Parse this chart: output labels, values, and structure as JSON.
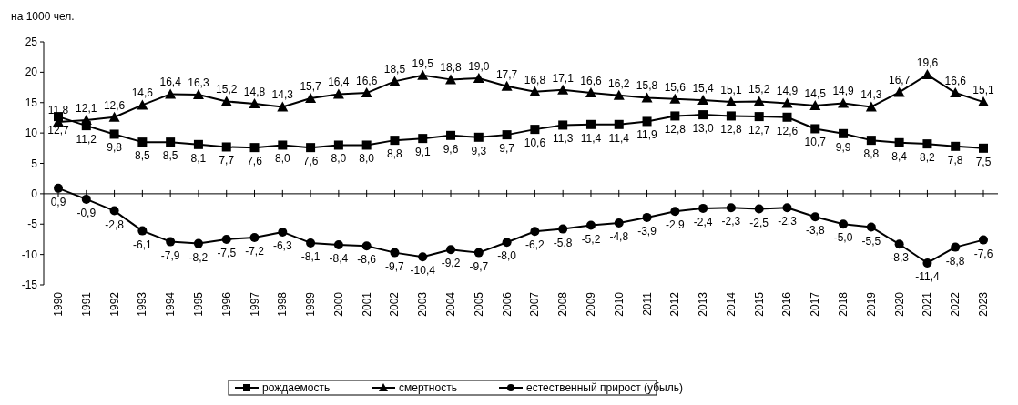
{
  "chart_data": {
    "type": "line",
    "ylabel": "на 1000 чел.",
    "categories": [
      "1990",
      "1991",
      "1992",
      "1993",
      "1994",
      "1995",
      "1996",
      "1997",
      "1998",
      "1999",
      "2000",
      "2001",
      "2002",
      "2003",
      "2004",
      "2005",
      "2006",
      "2007",
      "2008",
      "2009",
      "2010",
      "2011",
      "2012",
      "2013",
      "2014",
      "2015",
      "2016",
      "2017",
      "2018",
      "2019",
      "2020",
      "2021",
      "2022",
      "2023"
    ],
    "ylim": [
      -15,
      25
    ],
    "yticks": [
      -15,
      -10,
      -5,
      0,
      5,
      10,
      15,
      20,
      25
    ],
    "legend": "bottom",
    "series": [
      {
        "name": "рождаемость",
        "color": "#000000",
        "marker": "square",
        "values": [
          12.7,
          11.2,
          9.8,
          8.5,
          8.5,
          8.1,
          7.7,
          7.6,
          8.0,
          7.6,
          8.0,
          8.0,
          8.8,
          9.1,
          9.6,
          9.3,
          9.7,
          10.6,
          11.3,
          11.4,
          11.4,
          11.9,
          12.8,
          13.0,
          12.8,
          12.7,
          12.6,
          10.7,
          9.9,
          8.8,
          8.4,
          8.2,
          7.8,
          7.5
        ],
        "value_labels": [
          "12,7",
          "11,2",
          "9,8",
          "8,5",
          "8,5",
          "8,1",
          "7,7",
          "7,6",
          "8,0",
          "7,6",
          "8,0",
          "8,0",
          "8,8",
          "9,1",
          "9,6",
          "9,3",
          "9,7",
          "10,6",
          "11,3",
          "11,4",
          "11,4",
          "11,9",
          "12,8",
          "13,0",
          "12,8",
          "12,7",
          "12,6",
          "10,7",
          "9,9",
          "8,8",
          "8,4",
          "8,2",
          "7,8",
          "7,5"
        ]
      },
      {
        "name": "смертность",
        "color": "#000000",
        "marker": "triangle",
        "values": [
          11.8,
          12.1,
          12.6,
          14.6,
          16.4,
          16.3,
          15.2,
          14.8,
          14.3,
          15.7,
          16.4,
          16.6,
          18.5,
          19.5,
          18.8,
          19.0,
          17.7,
          16.8,
          17.1,
          16.6,
          16.2,
          15.8,
          15.6,
          15.4,
          15.1,
          15.2,
          14.9,
          14.5,
          14.9,
          14.3,
          16.7,
          19.6,
          16.6,
          15.1
        ],
        "value_labels": [
          "11,8",
          "12,1",
          "12,6",
          "14,6",
          "16,4",
          "16,3",
          "15,2",
          "14,8",
          "14,3",
          "15,7",
          "16,4",
          "16,6",
          "18,5",
          "19,5",
          "18,8",
          "19,0",
          "17,7",
          "16,8",
          "17,1",
          "16,6",
          "16,2",
          "15,8",
          "15,6",
          "15,4",
          "15,1",
          "15,2",
          "14,9",
          "14,5",
          "14,9",
          "14,3",
          "16,7",
          "19,6",
          "16,6",
          "15,1"
        ]
      },
      {
        "name": "естественный прирост (убыль)",
        "color": "#000000",
        "marker": "circle",
        "values": [
          0.9,
          -0.9,
          -2.8,
          -6.1,
          -7.9,
          -8.2,
          -7.5,
          -7.2,
          -6.3,
          -8.1,
          -8.4,
          -8.6,
          -9.7,
          -10.4,
          -9.2,
          -9.7,
          -8.0,
          -6.2,
          -5.8,
          -5.2,
          -4.8,
          -3.9,
          -2.9,
          -2.4,
          -2.3,
          -2.5,
          -2.3,
          -3.8,
          -5.0,
          -5.5,
          -8.3,
          -11.4,
          -8.8,
          -7.6
        ],
        "value_labels": [
          "0,9",
          "-0,9",
          "-2,8",
          "-6,1",
          "-7,9",
          "-8,2",
          "-7,5",
          "-7,2",
          "-6,3",
          "-8,1",
          "-8,4",
          "-8,6",
          "-9,7",
          "-10,4",
          "-9,2",
          "-9,7",
          "-8,0",
          "-6,2",
          "-5,8",
          "-5,2",
          "-4,8",
          "-3,9",
          "-2,9",
          "-2,4",
          "-2,3",
          "-2,5",
          "-2,3",
          "-3,8",
          "-5,0",
          "-5,5",
          "-8,3",
          "-11,4",
          "-8,8",
          "-7,6"
        ]
      }
    ]
  }
}
